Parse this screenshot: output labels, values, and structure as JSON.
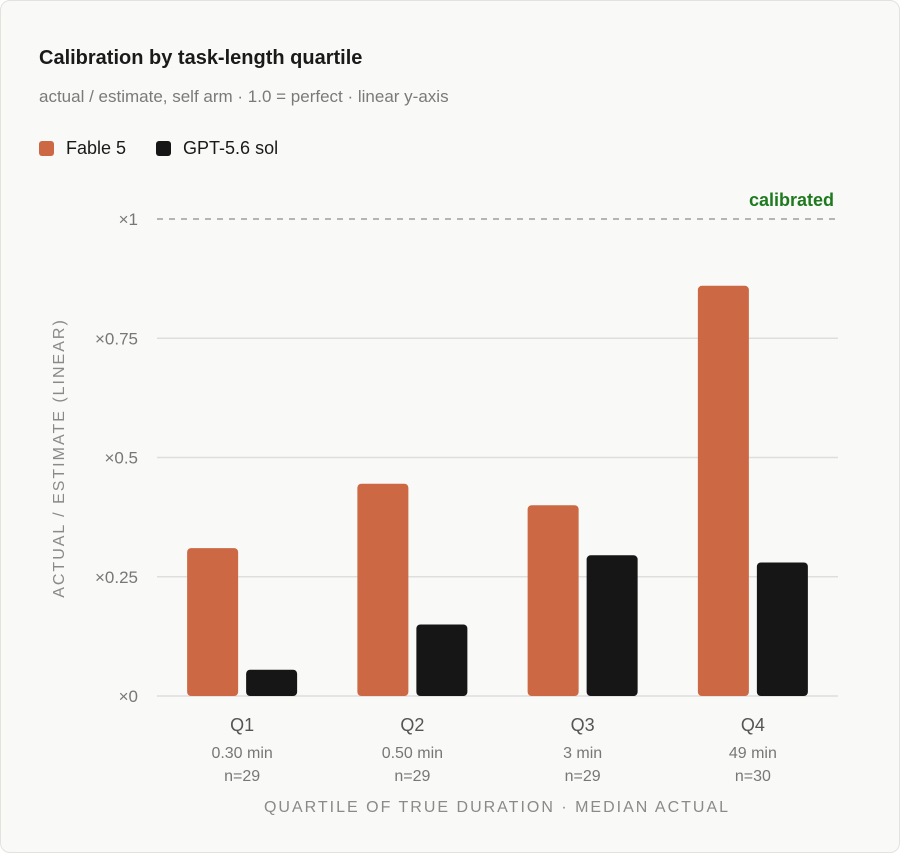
{
  "chart_data": {
    "type": "bar",
    "title": "Calibration by task-length quartile",
    "subtitle": "actual / estimate, self arm · 1.0 = perfect · linear y-axis",
    "xlabel": "QUARTILE OF TRUE DURATION · MEDIAN ACTUAL",
    "ylabel": "ACTUAL / ESTIMATE (LINEAR)",
    "ylim": [
      0,
      1
    ],
    "yscale": "linear",
    "yticks": [
      0,
      0.25,
      0.5,
      0.75,
      1
    ],
    "ytick_labels": [
      "×0",
      "×0.25",
      "×0.5",
      "×0.75",
      "×1"
    ],
    "grid": true,
    "legend_position": "top-left",
    "categories": [
      "Q1",
      "Q2",
      "Q3",
      "Q4"
    ],
    "category_medians": [
      "0.30 min",
      "0.50 min",
      "3 min",
      "49 min"
    ],
    "category_counts": [
      "n=29",
      "n=29",
      "n=29",
      "n=30"
    ],
    "series": [
      {
        "name": "Fable 5",
        "color": "#cc6944",
        "values": [
          0.31,
          0.445,
          0.4,
          0.86
        ]
      },
      {
        "name": "GPT-5.6 sol",
        "color": "#161616",
        "values": [
          0.055,
          0.15,
          0.295,
          0.28
        ]
      }
    ],
    "reference_line": {
      "value": 1.0,
      "label": "calibrated",
      "color": "#1f7a1f"
    }
  }
}
